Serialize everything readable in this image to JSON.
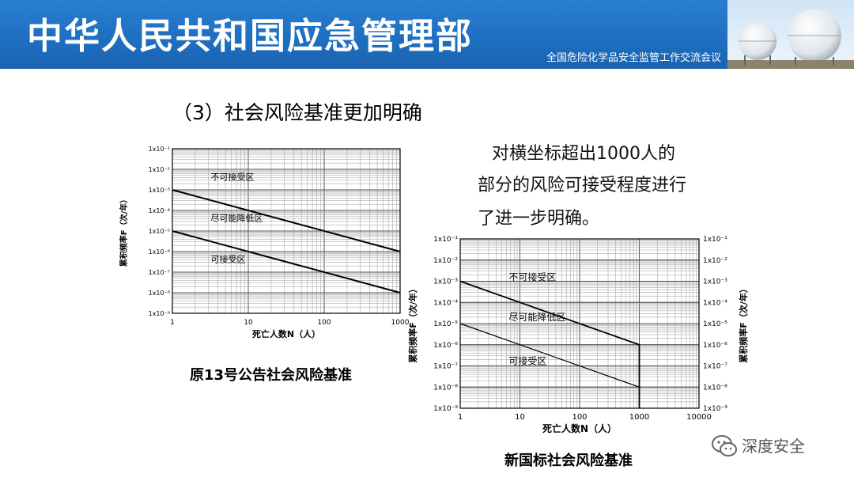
{
  "header": {
    "title": "中华人民共和国应急管理部",
    "subtitle": "全国危险化学品安全监管工作交流会议"
  },
  "section_title": "（3）社会风险基准更加明确",
  "body_lines": [
    "对横坐标超出1000人的",
    "部分的风险可接受程度进行",
    "了进一步明确。"
  ],
  "watermark": "深度安全",
  "colors": {
    "header_blue": "#1f6fc1",
    "line": "#000000"
  },
  "chart_data": [
    {
      "type": "line",
      "title": "原13号公告社会风险基准",
      "xlabel": "死亡人数N（人）",
      "ylabel": "累积频率F（次/年）",
      "x_scale": "log",
      "y_scale": "log",
      "xlim": [
        1,
        1000
      ],
      "ylim": [
        1e-09,
        0.1
      ],
      "x_ticks": [
        "1",
        "10",
        "100",
        "1000"
      ],
      "y_ticks": [
        "1x10⁻¹",
        "1x10⁻²",
        "1x10⁻³",
        "1x10⁻⁴",
        "1x10⁻⁵",
        "1x10⁻⁶",
        "1x10⁻⁷",
        "1x10⁻⁸",
        "1x10⁻⁹"
      ],
      "grid": true,
      "series": [
        {
          "x": [
            1,
            1000
          ],
          "y": [
            0.001,
            1e-06
          ]
        },
        {
          "x": [
            1,
            1000
          ],
          "y": [
            1e-05,
            1e-08
          ]
        }
      ],
      "region_labels": [
        "不可接受区",
        "尽可能降低区",
        "可接受区"
      ]
    },
    {
      "type": "line",
      "title": "新国标社会风险基准",
      "xlabel": "死亡人数N（人）",
      "ylabel": "累积频率F（次/年）",
      "x_scale": "log",
      "y_scale": "log",
      "xlim": [
        1,
        10000
      ],
      "ylim": [
        1e-09,
        0.1
      ],
      "x_ticks": [
        "1",
        "10",
        "100",
        "1000",
        "10000"
      ],
      "y_ticks": [
        "1x10⁻¹",
        "1x10⁻²",
        "1x10⁻³",
        "1x10⁻⁴",
        "1x10⁻⁵",
        "1x10⁻⁶",
        "1x10⁻⁷",
        "1x10⁻⁸",
        "1x10⁻⁹"
      ],
      "grid": true,
      "series": [
        {
          "x": [
            1,
            1000,
            1000
          ],
          "y": [
            0.001,
            1e-06,
            1e-09
          ]
        },
        {
          "x": [
            1,
            1000
          ],
          "y": [
            1e-05,
            1e-08
          ]
        }
      ],
      "region_labels": [
        "不可接受区",
        "尽可能降低区",
        "可接受区"
      ]
    }
  ]
}
